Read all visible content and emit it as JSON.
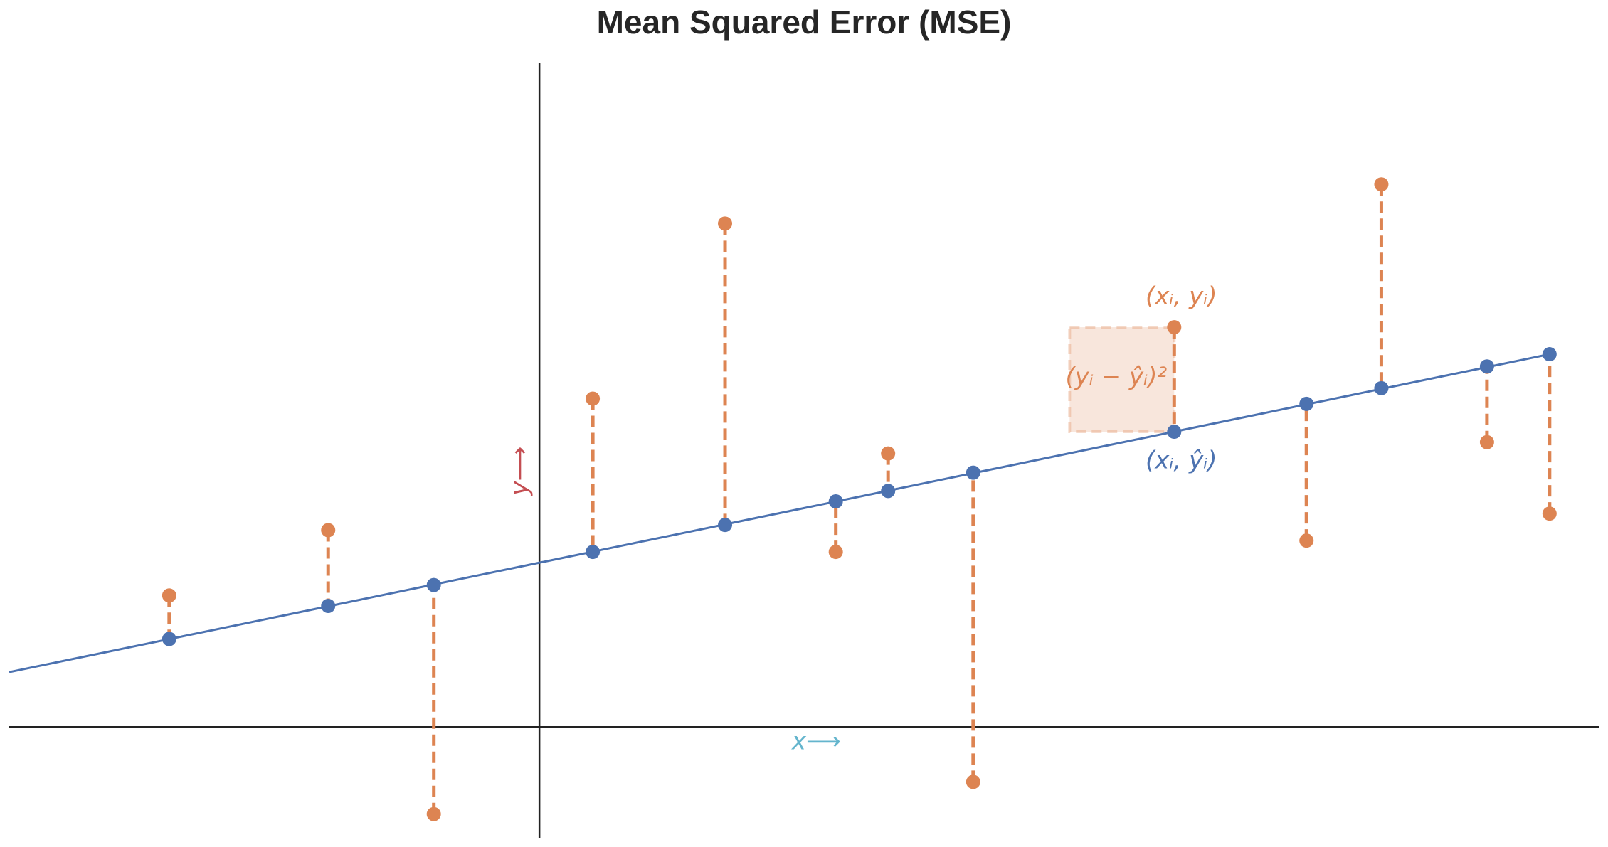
{
  "chart_data": {
    "type": "scatter",
    "title": "Mean Squared Error (MSE)",
    "x_label": "x⟶",
    "y_label": "y⟶",
    "x_label_color": "#64b5cd",
    "y_label_color": "#c44e52",
    "x": [
      -3.61,
      -2.06,
      -1.03,
      0.52,
      1.81,
      2.89,
      3.4,
      4.23,
      6.19,
      7.48,
      8.21,
      9.24,
      9.85
    ],
    "y_pred": [
      1.01,
      1.39,
      1.63,
      2.01,
      2.32,
      2.59,
      2.71,
      2.92,
      3.39,
      3.71,
      3.89,
      4.14,
      4.28
    ],
    "y_true": [
      1.51,
      2.26,
      -1.0,
      3.77,
      5.78,
      2.01,
      3.14,
      -0.63,
      4.59,
      2.14,
      6.23,
      3.27,
      2.45
    ],
    "pred_color": "#4c72b0",
    "true_color": "#dd8452",
    "line": {
      "x": [
        -5.17,
        9.85
      ],
      "y": [
        0.63,
        4.28
      ]
    },
    "annotations": {
      "true_point": "(xᵢ, yᵢ)",
      "pred_point": "(xᵢ, ŷᵢ)",
      "squared_error": "(yᵢ − ŷᵢ)²"
    },
    "xlim": [
      -5.17,
      10.33
    ],
    "ylim": [
      -1.28,
      7.62
    ]
  }
}
